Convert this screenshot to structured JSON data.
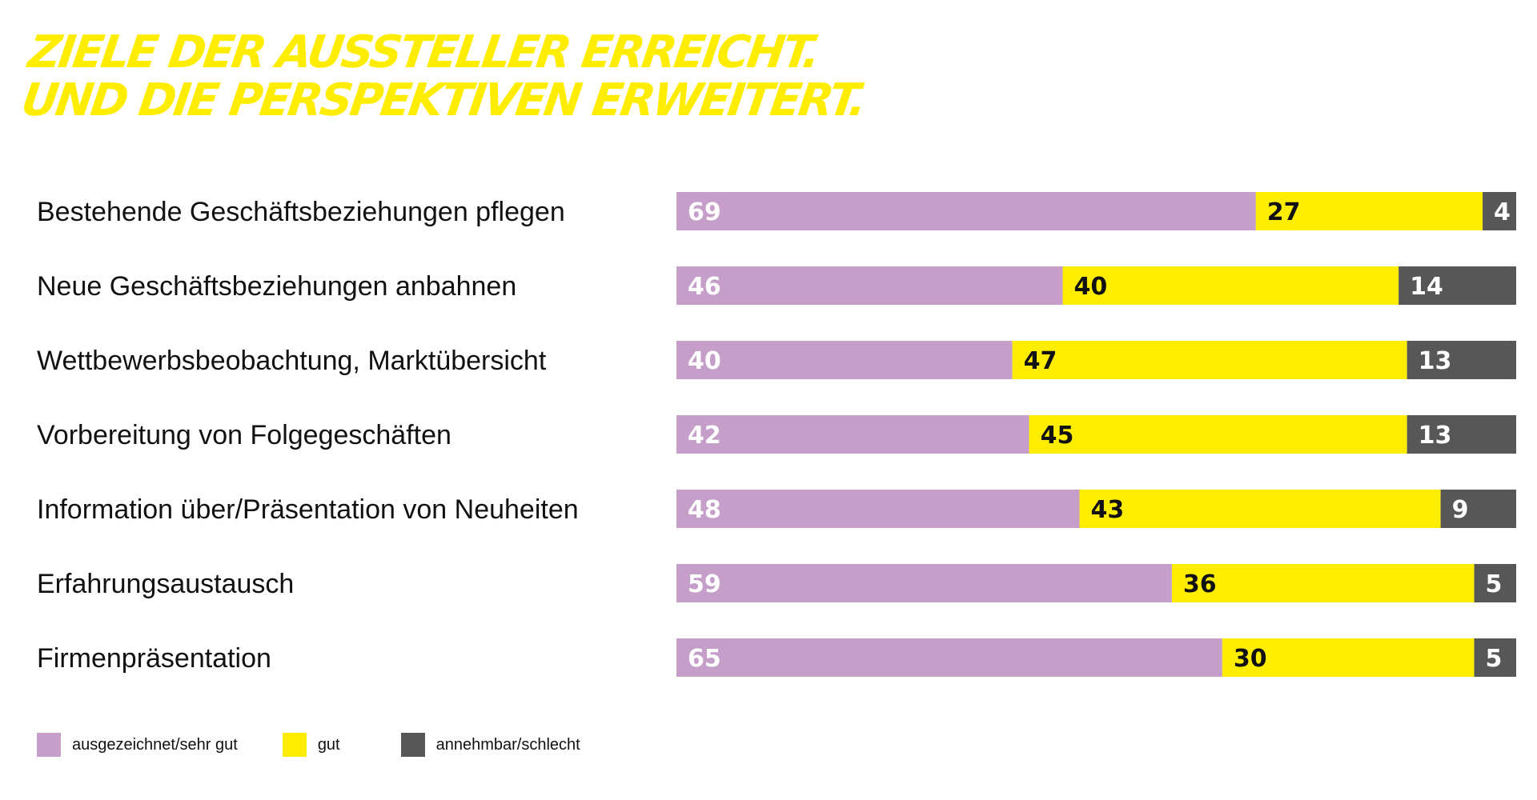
{
  "title": {
    "line1": "ZIELE DER AUSSTELLER ERREICHT.",
    "line2": "UND DIE PERSPEKTIVEN ERWEITERT."
  },
  "colors": {
    "title": "#ffed00",
    "excellent": "#c59ec9",
    "good": "#ffed00",
    "poor": "#575757",
    "label_on_dark": "#ffffff",
    "label_on_yellow": "#111111"
  },
  "chart_data": {
    "type": "bar",
    "orientation": "horizontal",
    "stacked": true,
    "title": "ZIELE DER AUSSTELLER ERREICHT. UND DIE PERSPEKTIVEN ERWEITERT.",
    "xlabel": "",
    "ylabel": "",
    "xlim": [
      0,
      100
    ],
    "grid": false,
    "legend_position": "bottom-left",
    "categories": [
      "Bestehende Geschäftsbeziehungen pflegen",
      "Neue Geschäftsbeziehungen anbahnen",
      "Wettbewerbsbeobachtung, Marktübersicht",
      "Vorbereitung von Folgegeschäften",
      "Information über/Präsentation von Neuheiten",
      "Erfahrungsaustausch",
      "Firmenpräsentation"
    ],
    "series": [
      {
        "name": "ausgezeichnet/sehr gut",
        "color": "#c59ec9",
        "values": [
          69,
          46,
          40,
          42,
          48,
          59,
          65
        ]
      },
      {
        "name": "gut",
        "color": "#ffed00",
        "values": [
          27,
          40,
          47,
          45,
          43,
          36,
          30
        ]
      },
      {
        "name": "annehmbar/schlecht",
        "color": "#575757",
        "values": [
          4,
          14,
          13,
          13,
          9,
          5,
          5
        ]
      }
    ]
  }
}
